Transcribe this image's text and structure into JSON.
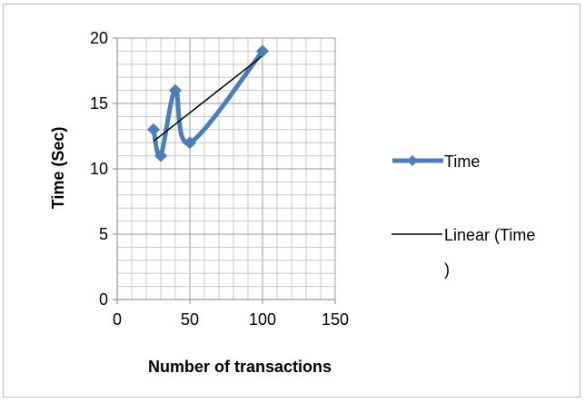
{
  "chart_data": {
    "type": "line",
    "xlabel": "Number of transactions",
    "ylabel": "Time (Sec)",
    "xlim": [
      0,
      150
    ],
    "ylim": [
      0,
      20
    ],
    "x_ticks": [
      "0",
      "50",
      "100",
      "150"
    ],
    "y_ticks": [
      "0",
      "5",
      "10",
      "15",
      "20"
    ],
    "grid": true,
    "legend_position": "right",
    "series": [
      {
        "name": "Time",
        "x": [
          25,
          30,
          40,
          50,
          100
        ],
        "y": [
          13,
          11,
          16,
          12,
          19
        ],
        "color": "#4a7ebb",
        "marker": "diamond",
        "smooth": true
      }
    ],
    "trendline": {
      "name": "Linear (Time )",
      "type": "linear",
      "color": "#000000"
    },
    "legend": [
      {
        "label": "Time"
      },
      {
        "label_line1": "Linear (Time",
        "label_line2": ")"
      }
    ]
  }
}
